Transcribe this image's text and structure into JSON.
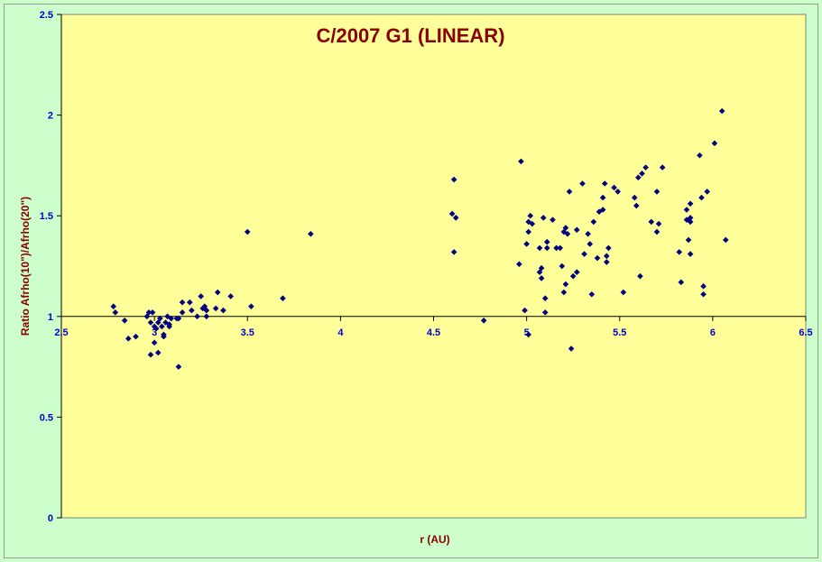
{
  "colors": {
    "page_background": "#ccffcc",
    "plot_background": "#ffff99",
    "title": "#8b0000",
    "axis_label": "#8b0000",
    "tick_label": "#0000cc",
    "marker": "#000080"
  },
  "chart_data": {
    "type": "scatter",
    "title": "C/2007 G1 (LINEAR)",
    "xlabel": "r (AU)",
    "ylabel": "Ratio Afrho(10\")/Afrho(20\")",
    "xlim": [
      2.5,
      6.5
    ],
    "ylim": [
      0,
      2.5
    ],
    "x_crosses_y_at": 1,
    "x_ticks": [
      "2.5",
      "3",
      "3.5",
      "4",
      "4.5",
      "5",
      "5.5",
      "6",
      "6.5"
    ],
    "y_ticks": [
      "0",
      "0.5",
      "1",
      "1.5",
      "2",
      "2.5"
    ],
    "grid": false,
    "legend": "none",
    "marker": "diamond",
    "series": [
      {
        "points": [
          [
            2.78,
            1.05
          ],
          [
            2.79,
            1.02
          ],
          [
            2.84,
            0.98
          ],
          [
            2.86,
            0.89
          ],
          [
            2.9,
            0.9
          ],
          [
            2.96,
            1.0
          ],
          [
            2.97,
            1.02
          ],
          [
            2.98,
            0.97
          ],
          [
            2.98,
            0.81
          ],
          [
            2.99,
            1.02
          ],
          [
            3.0,
            0.95
          ],
          [
            3.0,
            0.87
          ],
          [
            3.01,
            0.94
          ],
          [
            3.02,
            0.82
          ],
          [
            3.02,
            0.97
          ],
          [
            3.03,
            0.99
          ],
          [
            3.04,
            0.95
          ],
          [
            3.05,
            0.91
          ],
          [
            3.05,
            0.9
          ],
          [
            3.06,
            0.97
          ],
          [
            3.07,
            1.0
          ],
          [
            3.08,
            0.95
          ],
          [
            3.08,
            0.96
          ],
          [
            3.09,
            0.99
          ],
          [
            3.12,
            0.99
          ],
          [
            3.13,
            0.99
          ],
          [
            3.13,
            0.75
          ],
          [
            3.15,
            1.07
          ],
          [
            3.15,
            1.02
          ],
          [
            3.19,
            1.07
          ],
          [
            3.2,
            1.03
          ],
          [
            3.23,
            1.0
          ],
          [
            3.25,
            1.1
          ],
          [
            3.26,
            1.04
          ],
          [
            3.27,
            1.05
          ],
          [
            3.28,
            1.03
          ],
          [
            3.28,
            1.0
          ],
          [
            3.33,
            1.04
          ],
          [
            3.34,
            1.12
          ],
          [
            3.37,
            1.03
          ],
          [
            3.41,
            1.1
          ],
          [
            3.5,
            1.42
          ],
          [
            3.52,
            1.05
          ],
          [
            3.69,
            1.09
          ],
          [
            3.84,
            1.41
          ],
          [
            4.6,
            1.51
          ],
          [
            4.61,
            1.68
          ],
          [
            4.61,
            1.32
          ],
          [
            4.62,
            1.49
          ],
          [
            4.77,
            0.98
          ],
          [
            4.96,
            1.26
          ],
          [
            4.97,
            1.77
          ],
          [
            4.99,
            1.03
          ],
          [
            5.0,
            1.36
          ],
          [
            5.01,
            0.91
          ],
          [
            5.01,
            1.42
          ],
          [
            5.01,
            1.47
          ],
          [
            5.02,
            1.5
          ],
          [
            5.03,
            1.46
          ],
          [
            5.07,
            1.34
          ],
          [
            5.07,
            1.22
          ],
          [
            5.08,
            1.24
          ],
          [
            5.08,
            1.19
          ],
          [
            5.09,
            1.49
          ],
          [
            5.1,
            1.09
          ],
          [
            5.1,
            1.02
          ],
          [
            5.11,
            1.34
          ],
          [
            5.11,
            1.37
          ],
          [
            5.14,
            1.48
          ],
          [
            5.16,
            1.34
          ],
          [
            5.18,
            1.34
          ],
          [
            5.19,
            1.25
          ],
          [
            5.2,
            1.12
          ],
          [
            5.2,
            1.42
          ],
          [
            5.21,
            1.16
          ],
          [
            5.21,
            1.44
          ],
          [
            5.22,
            1.41
          ],
          [
            5.23,
            1.62
          ],
          [
            5.24,
            0.84
          ],
          [
            5.25,
            1.2
          ],
          [
            5.27,
            1.43
          ],
          [
            5.27,
            1.22
          ],
          [
            5.3,
            1.66
          ],
          [
            5.31,
            1.31
          ],
          [
            5.33,
            1.41
          ],
          [
            5.34,
            1.36
          ],
          [
            5.35,
            1.11
          ],
          [
            5.36,
            1.47
          ],
          [
            5.38,
            1.29
          ],
          [
            5.39,
            1.52
          ],
          [
            5.41,
            1.59
          ],
          [
            5.41,
            1.53
          ],
          [
            5.42,
            1.66
          ],
          [
            5.43,
            1.27
          ],
          [
            5.43,
            1.3
          ],
          [
            5.44,
            1.34
          ],
          [
            5.47,
            1.64
          ],
          [
            5.49,
            1.62
          ],
          [
            5.52,
            1.12
          ],
          [
            5.58,
            1.59
          ],
          [
            5.59,
            1.55
          ],
          [
            5.6,
            1.69
          ],
          [
            5.61,
            1.2
          ],
          [
            5.62,
            1.71
          ],
          [
            5.64,
            1.74
          ],
          [
            5.67,
            1.47
          ],
          [
            5.7,
            1.62
          ],
          [
            5.7,
            1.42
          ],
          [
            5.71,
            1.46
          ],
          [
            5.73,
            1.74
          ],
          [
            5.82,
            1.32
          ],
          [
            5.83,
            1.17
          ],
          [
            5.86,
            1.48
          ],
          [
            5.86,
            1.53
          ],
          [
            5.87,
            1.38
          ],
          [
            5.88,
            1.56
          ],
          [
            5.88,
            1.31
          ],
          [
            5.88,
            1.49
          ],
          [
            5.88,
            1.47
          ],
          [
            5.93,
            1.8
          ],
          [
            5.94,
            1.59
          ],
          [
            5.95,
            1.11
          ],
          [
            5.95,
            1.15
          ],
          [
            5.97,
            1.62
          ],
          [
            6.01,
            1.86
          ],
          [
            6.05,
            2.02
          ],
          [
            6.07,
            1.38
          ]
        ]
      }
    ]
  }
}
